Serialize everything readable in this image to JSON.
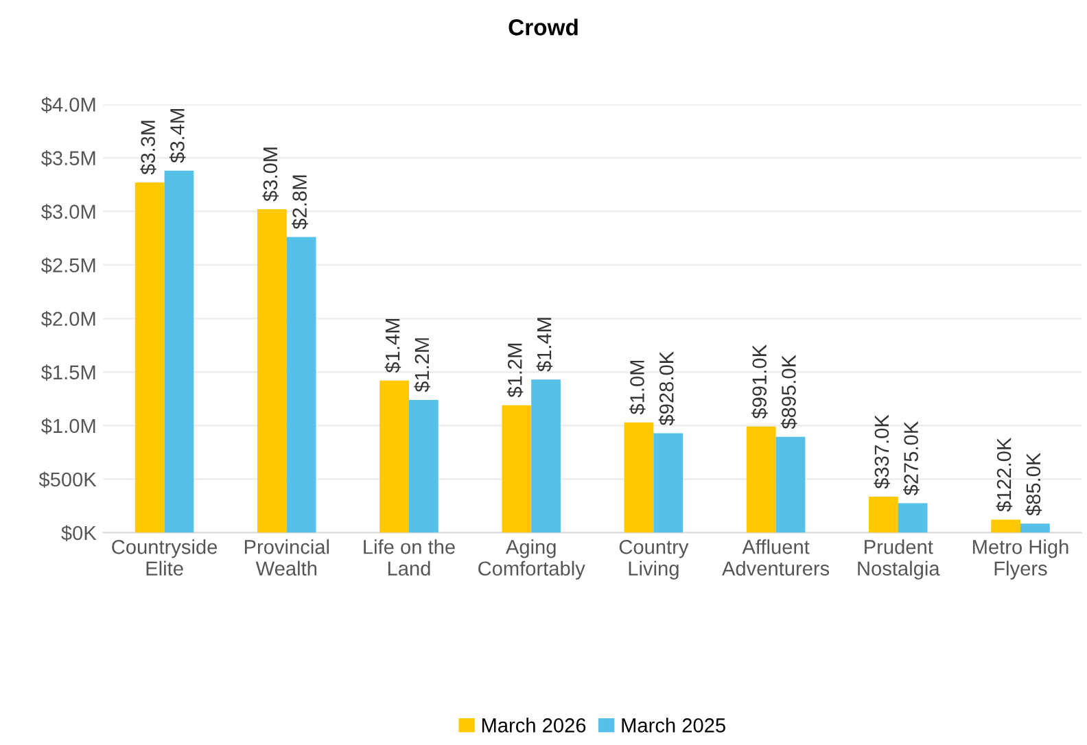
{
  "chart_data": {
    "type": "bar",
    "title": "Crowd",
    "categories": [
      "Countryside\nElite",
      "Provincial\nWealth",
      "Life on the\nLand",
      "Aging\nComfortably",
      "Country\nLiving",
      "Affluent\nAdventurers",
      "Prudent\nNostalgia",
      "Metro High\nFlyers"
    ],
    "series": [
      {
        "name": "March 2026",
        "color": "#ffc800",
        "values": [
          3270000,
          3020000,
          1420000,
          1190000,
          1030000,
          991000,
          337000,
          122000
        ],
        "value_labels": [
          "$3.3M",
          "$3.0M",
          "$1.4M",
          "$1.2M",
          "$1.0M",
          "$991.0K",
          "$337.0K",
          "$122.0K"
        ]
      },
      {
        "name": "March 2025",
        "color": "#56c1e8",
        "values": [
          3380000,
          2760000,
          1240000,
          1430000,
          928000,
          895000,
          275000,
          85000
        ],
        "value_labels": [
          "$3.4M",
          "$2.8M",
          "$1.2M",
          "$1.4M",
          "$928.0K",
          "$895.0K",
          "$275.0K",
          "$85.0K"
        ]
      }
    ],
    "ylim": [
      0,
      4000000
    ],
    "yticks": [
      {
        "value": 0,
        "label": "$0K"
      },
      {
        "value": 500000,
        "label": "$500K"
      },
      {
        "value": 1000000,
        "label": "$1.0M"
      },
      {
        "value": 1500000,
        "label": "$1.5M"
      },
      {
        "value": 2000000,
        "label": "$2.0M"
      },
      {
        "value": 2500000,
        "label": "$2.5M"
      },
      {
        "value": 3000000,
        "label": "$3.0M"
      },
      {
        "value": 3500000,
        "label": "$3.5M"
      },
      {
        "value": 4000000,
        "label": "$4.0M"
      }
    ],
    "grid": "y",
    "legend": "bottom"
  }
}
